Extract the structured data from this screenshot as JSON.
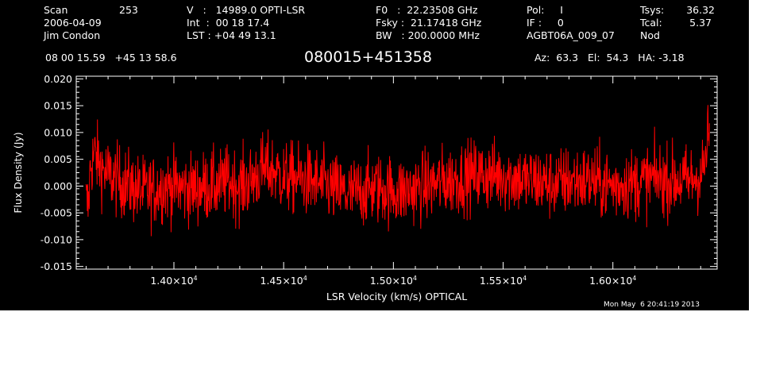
{
  "header": {
    "scan_label": "Scan",
    "scan_value": "253",
    "date": "2006-04-09",
    "observer": "Jim Condon",
    "v_line": "V   :   14989.0 OPTI-LSR",
    "int_line": "Int  :  00 18 17.4",
    "lst_line": "LST : +04 49 13.1",
    "f0_line": "F0   :  22.23508 GHz",
    "fsky_line": "Fsky :  21.17418 GHz",
    "bw_line": "BW   : 200.0000 MHz",
    "pol_line": "Pol:     I",
    "if_line": "IF :     0",
    "project": "AGBT06A_009_07",
    "tsys_label": "Tsys:",
    "tsys_value": "36.32",
    "tcal_label": "Tcal:",
    "tcal_value": "5.37",
    "mode": "Nod",
    "coords": "08 00 15.59   +45 13 58.6",
    "source": "080015+451358",
    "az_el_ha": "Az:  63.3   El:  54.3   HA: -3.18"
  },
  "timestamp": "Mon May  6 20:41:19 2013",
  "colors": {
    "background": "#000000",
    "trace": "#ff0000",
    "axes": "#ffffff"
  },
  "chart_data": {
    "type": "line",
    "xlabel": "LSR Velocity (km/s) OPTICAL",
    "ylabel": "Flux Density (Jy)",
    "xlim": [
      13555,
      16475
    ],
    "ylim": [
      -0.0155,
      0.0205
    ],
    "xticks": [
      {
        "value": 14000,
        "mant": "1.40",
        "exp": "4"
      },
      {
        "value": 14500,
        "mant": "1.45",
        "exp": "4"
      },
      {
        "value": 15000,
        "mant": "1.50",
        "exp": "4"
      },
      {
        "value": 15500,
        "mant": "1.55",
        "exp": "4"
      },
      {
        "value": 16000,
        "mant": "1.60",
        "exp": "4"
      }
    ],
    "yticks": [
      {
        "value": 0.02,
        "label": "0.020"
      },
      {
        "value": 0.015,
        "label": "0.015"
      },
      {
        "value": 0.01,
        "label": "0.010"
      },
      {
        "value": 0.005,
        "label": "0.005"
      },
      {
        "value": 0.0,
        "label": "0.000"
      },
      {
        "value": -0.005,
        "label": "-0.005"
      },
      {
        "value": -0.01,
        "label": "-0.010"
      },
      {
        "value": -0.015,
        "label": "-0.015"
      }
    ],
    "series": [
      {
        "x_start": 13600,
        "x_end": 16440,
        "x": [
          13600,
          13610,
          13620,
          13640,
          13660,
          13700,
          13750,
          13800,
          13850,
          13900,
          13950,
          14000,
          14050,
          14100,
          14150,
          14200,
          14250,
          14300,
          14350,
          14400,
          14450,
          14500,
          14550,
          14600,
          14650,
          14700,
          14750,
          14800,
          14850,
          14900,
          14950,
          15000,
          15050,
          15100,
          15150,
          15200,
          15250,
          15300,
          15350,
          15400,
          15450,
          15500,
          15550,
          15600,
          15650,
          15700,
          15750,
          15800,
          15850,
          15900,
          15950,
          16000,
          16050,
          16100,
          16150,
          16200,
          16250,
          16300,
          16350,
          16400,
          16420,
          16430,
          16440
        ],
        "y": [
          -0.003,
          -0.004,
          0.004,
          0.006,
          0.004,
          0.002,
          0.001,
          0.0,
          -0.001,
          -0.001,
          0.0,
          0.0,
          -0.0005,
          -0.0005,
          0.0,
          0.0,
          0.001,
          0.0,
          0.001,
          0.003,
          0.003,
          0.0015,
          0.0015,
          0.001,
          0.0005,
          0.0,
          -0.001,
          -0.0015,
          -0.001,
          -0.0005,
          -0.0005,
          -0.001,
          -0.001,
          -0.0005,
          0.0,
          0.0005,
          0.001,
          0.0015,
          0.002,
          0.002,
          0.002,
          0.002,
          0.0015,
          0.001,
          0.001,
          0.0005,
          0.0005,
          0.001,
          0.001,
          0.001,
          0.0005,
          0.0,
          0.0005,
          0.0005,
          0.001,
          0.0015,
          0.001,
          0.001,
          0.001,
          0.002,
          0.004,
          0.008,
          0.01
        ],
        "noise_rms": 0.0033
      }
    ]
  }
}
